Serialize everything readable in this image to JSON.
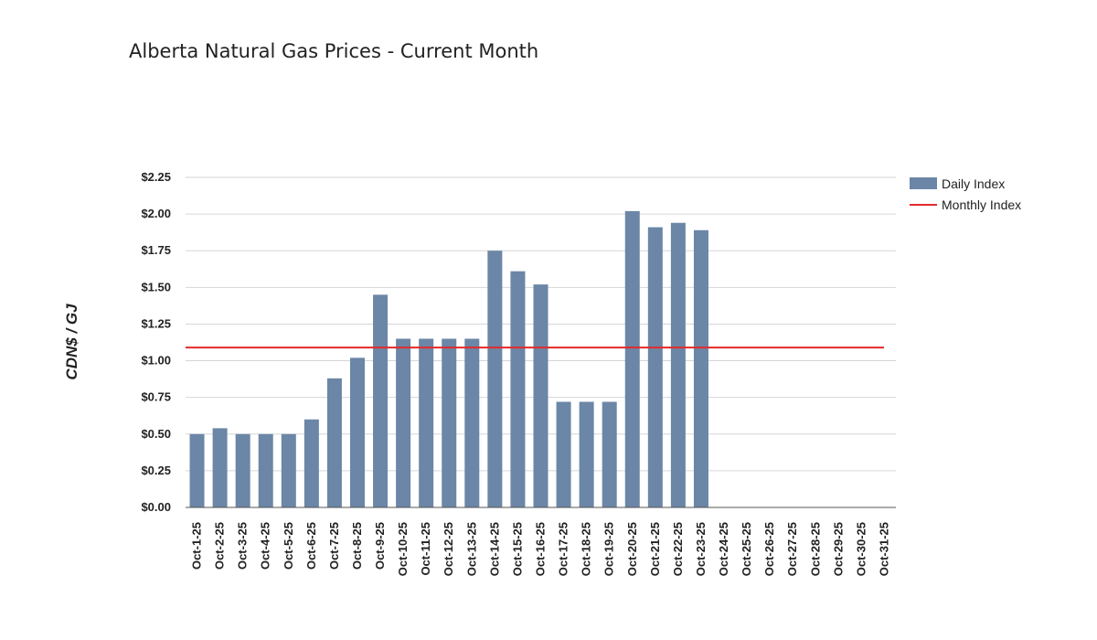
{
  "title": "Alberta Natural Gas Prices - Current Month",
  "chart_data": {
    "type": "bar",
    "title": "Alberta Natural Gas Prices - Current Month",
    "ylabel": "CDN$ / GJ",
    "xlabel": "",
    "ylim": [
      0,
      2.25
    ],
    "yticks": [
      "$0.00",
      "$0.25",
      "$0.50",
      "$0.75",
      "$1.00",
      "$1.25",
      "$1.50",
      "$1.75",
      "$2.00",
      "$2.25"
    ],
    "ytick_values": [
      0,
      0.25,
      0.5,
      0.75,
      1.0,
      1.25,
      1.5,
      1.75,
      2.0,
      2.25
    ],
    "grid": true,
    "legend_position": "top-right",
    "categories": [
      "Oct-1-25",
      "Oct-2-25",
      "Oct-3-25",
      "Oct-4-25",
      "Oct-5-25",
      "Oct-6-25",
      "Oct-7-25",
      "Oct-8-25",
      "Oct-9-25",
      "Oct-10-25",
      "Oct-11-25",
      "Oct-12-25",
      "Oct-13-25",
      "Oct-14-25",
      "Oct-15-25",
      "Oct-16-25",
      "Oct-17-25",
      "Oct-18-25",
      "Oct-19-25",
      "Oct-20-25",
      "Oct-21-25",
      "Oct-22-25",
      "Oct-23-25",
      "Oct-24-25",
      "Oct-25-25",
      "Oct-26-25",
      "Oct-27-25",
      "Oct-28-25",
      "Oct-29-25",
      "Oct-30-25",
      "Oct-31-25"
    ],
    "series": [
      {
        "name": "Daily Index",
        "type": "bar",
        "color": "#6b86a6",
        "values": [
          0.5,
          0.54,
          0.5,
          0.5,
          0.5,
          0.6,
          0.88,
          1.02,
          1.45,
          1.15,
          1.15,
          1.15,
          1.15,
          1.75,
          1.61,
          1.52,
          0.72,
          0.72,
          0.72,
          2.02,
          1.91,
          1.94,
          1.89,
          0,
          0,
          0,
          0,
          0,
          0,
          0,
          0
        ]
      },
      {
        "name": "Monthly Index",
        "type": "line",
        "color": "#e32a2a",
        "value": 1.09
      }
    ]
  }
}
